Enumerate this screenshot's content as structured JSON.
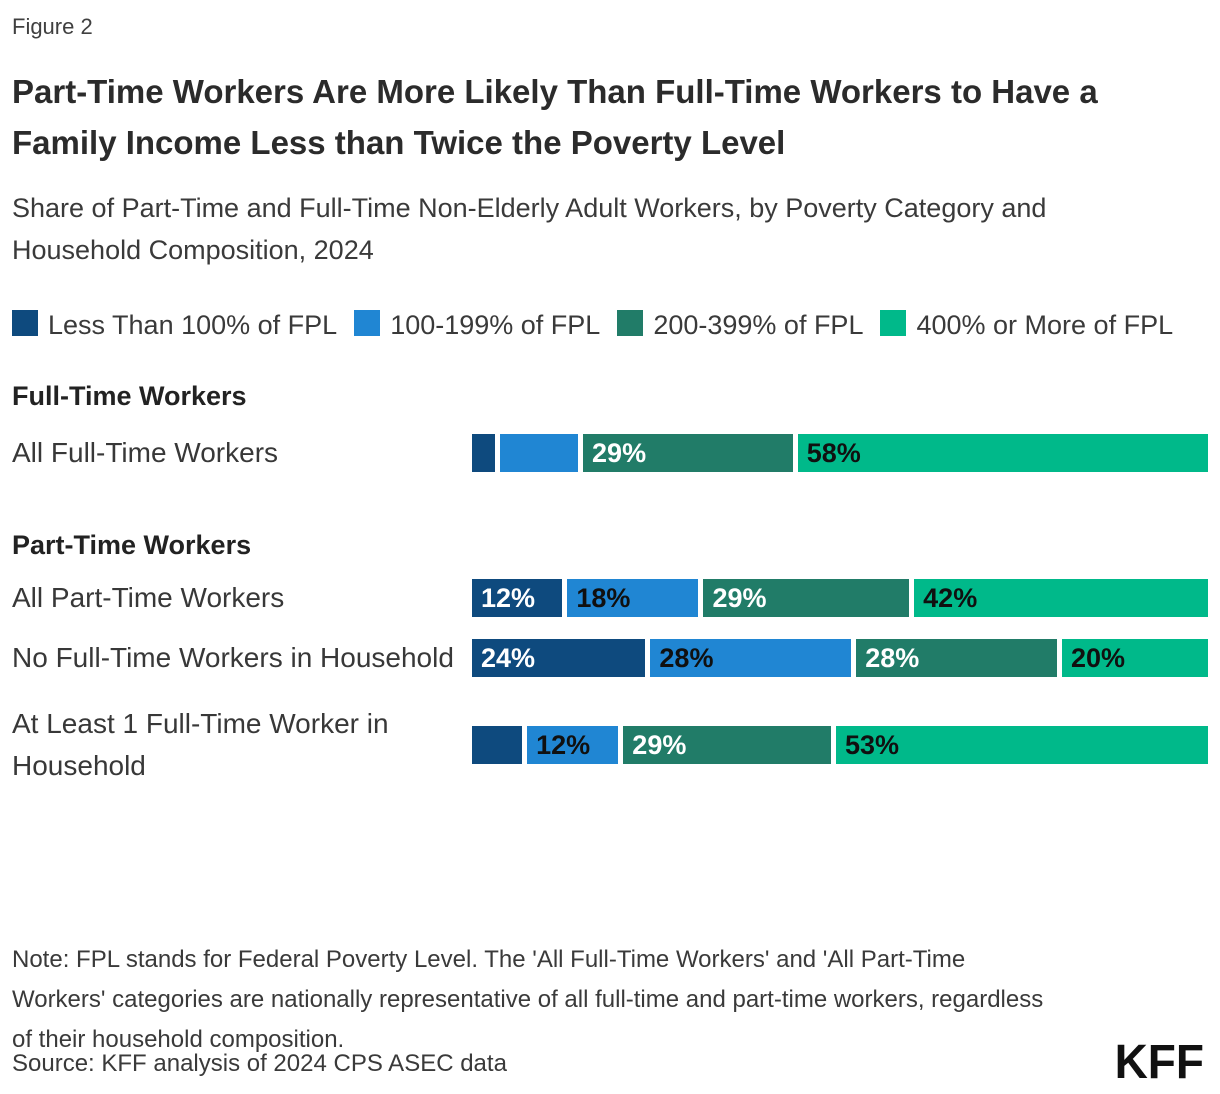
{
  "figure_label": "Figure 2",
  "title": "Part-Time Workers Are More Likely Than Full-Time Workers to Have a Family Income Less than Twice the Poverty Level",
  "subtitle": "Share of Part-Time and Full-Time Non-Elderly Adult Workers, by Poverty Category and Household Composition, 2024",
  "colors": {
    "navy": "#0e4a7e",
    "blue": "#2086d3",
    "teal": "#217c68",
    "green": "#00b98a",
    "segment_fills": [
      "#0e4a7e",
      "#2086d3",
      "#217c68",
      "#00b98a"
    ],
    "segment_text": [
      "#ffffff",
      "#101010",
      "#ffffff",
      "#101010"
    ]
  },
  "legend": {
    "items": [
      {
        "label": "Less Than 100% of FPL",
        "color": "#0e4a7e"
      },
      {
        "label": "100-199% of FPL",
        "color": "#2086d3"
      },
      {
        "label": "200-399% of FPL",
        "color": "#217c68"
      },
      {
        "label": "400% or More of FPL",
        "color": "#00b98a"
      }
    ]
  },
  "chart_data": {
    "type": "bar",
    "orientation": "horizontal",
    "stacked": true,
    "unit": "%",
    "series_names": [
      "Less Than 100% of FPL",
      "100-199% of FPL",
      "200-399% of FPL",
      "400% or More of FPL"
    ],
    "sections": [
      {
        "header": "Full-Time Workers",
        "rows": [
          {
            "label": "All Full-Time Workers",
            "values": [
              2,
              10,
              29,
              58
            ],
            "labels": [
              "",
              "",
              "29%",
              "58%"
            ]
          }
        ]
      },
      {
        "header": "Part-Time Workers",
        "rows": [
          {
            "label": "All Part-Time Workers",
            "values": [
              12,
              18,
              29,
              42
            ],
            "labels": [
              "12%",
              "18%",
              "29%",
              "42%"
            ]
          },
          {
            "label": "No Full-Time Workers in Household",
            "values": [
              24,
              28,
              28,
              20
            ],
            "labels": [
              "24%",
              "28%",
              "28%",
              "20%"
            ]
          },
          {
            "label": "At Least 1 Full-Time Worker in Household",
            "values": [
              6,
              12,
              29,
              53
            ],
            "labels": [
              "",
              "12%",
              "29%",
              "53%"
            ]
          }
        ]
      }
    ]
  },
  "note": "Note: FPL stands for Federal Poverty Level. The 'All Full-Time Workers' and 'All Part-Time Workers' categories are nationally representative of all full-time and part-time workers, regardless of their household composition.",
  "source": "Source: KFF analysis of 2024 CPS ASEC data",
  "logo": "KFF"
}
